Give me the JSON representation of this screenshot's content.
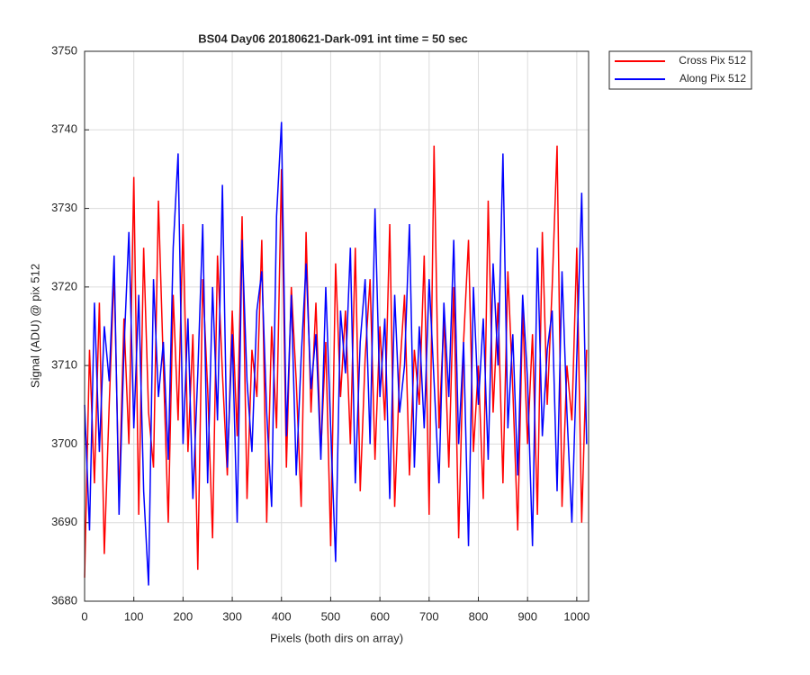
{
  "chart_data": {
    "type": "line",
    "title": "BS04 Day06 20180621-Dark-091 int time = 50 sec",
    "xlabel": "Pixels (both dirs on array)",
    "ylabel": "Signal (ADU) @ pix 512",
    "xlim": [
      0,
      1024
    ],
    "ylim": [
      3680,
      3750
    ],
    "xticks": [
      0,
      100,
      200,
      300,
      400,
      500,
      600,
      700,
      800,
      900,
      1000
    ],
    "yticks": [
      3680,
      3690,
      3700,
      3710,
      3720,
      3730,
      3740,
      3750
    ],
    "grid": true,
    "legend": "outside-top-right",
    "x": [
      0,
      10,
      20,
      30,
      40,
      50,
      60,
      70,
      80,
      90,
      100,
      110,
      120,
      130,
      140,
      150,
      160,
      170,
      180,
      190,
      200,
      210,
      220,
      230,
      240,
      250,
      260,
      270,
      280,
      290,
      300,
      310,
      320,
      330,
      340,
      350,
      360,
      370,
      380,
      390,
      400,
      410,
      420,
      430,
      440,
      450,
      460,
      470,
      480,
      490,
      500,
      510,
      520,
      530,
      540,
      550,
      560,
      570,
      580,
      590,
      600,
      610,
      620,
      630,
      640,
      650,
      660,
      670,
      680,
      690,
      700,
      710,
      720,
      730,
      740,
      750,
      760,
      770,
      780,
      790,
      800,
      810,
      820,
      830,
      840,
      850,
      860,
      870,
      880,
      890,
      900,
      910,
      920,
      930,
      940,
      950,
      960,
      970,
      980,
      990,
      1000,
      1010,
      1020
    ],
    "series": [
      {
        "name": "Cross Pix 512",
        "color": "#ff0000",
        "values": [
          3683,
          3712,
          3695,
          3718,
          3686,
          3705,
          3722,
          3693,
          3716,
          3700,
          3734,
          3691,
          3725,
          3704,
          3697,
          3731,
          3710,
          3690,
          3719,
          3703,
          3728,
          3699,
          3714,
          3684,
          3721,
          3707,
          3688,
          3724,
          3709,
          3696,
          3717,
          3701,
          3729,
          3693,
          3712,
          3706,
          3726,
          3690,
          3715,
          3702,
          3735,
          3697,
          3720,
          3708,
          3692,
          3727,
          3704,
          3718,
          3699,
          3713,
          3687,
          3723,
          3706,
          3717,
          3700,
          3725,
          3694,
          3711,
          3721,
          3698,
          3715,
          3703,
          3728,
          3692,
          3709,
          3719,
          3696,
          3712,
          3705,
          3724,
          3691,
          3738,
          3702,
          3716,
          3697,
          3720,
          3688,
          3713,
          3726,
          3699,
          3710,
          3693,
          3731,
          3704,
          3718,
          3695,
          3722,
          3707,
          3689,
          3717,
          3700,
          3714,
          3691,
          3727,
          3705,
          3720,
          3738,
          3692,
          3710,
          3703,
          3725,
          3690,
          3712
        ]
      },
      {
        "name": "Along Pix 512",
        "color": "#0000ff",
        "values": [
          3705,
          3689,
          3718,
          3699,
          3715,
          3708,
          3724,
          3691,
          3712,
          3727,
          3702,
          3719,
          3694,
          3682,
          3721,
          3706,
          3713,
          3698,
          3725,
          3737,
          3700,
          3716,
          3693,
          3709,
          3728,
          3695,
          3720,
          3703,
          3733,
          3697,
          3714,
          3690,
          3726,
          3708,
          3699,
          3717,
          3722,
          3704,
          3692,
          3729,
          3741,
          3701,
          3719,
          3696,
          3711,
          3723,
          3707,
          3714,
          3698,
          3720,
          3702,
          3685,
          3717,
          3709,
          3725,
          3695,
          3713,
          3721,
          3700,
          3730,
          3706,
          3716,
          3693,
          3719,
          3704,
          3710,
          3728,
          3697,
          3715,
          3702,
          3721,
          3708,
          3695,
          3718,
          3706,
          3726,
          3700,
          3713,
          3687,
          3720,
          3705,
          3716,
          3698,
          3723,
          3710,
          3737,
          3702,
          3714,
          3696,
          3719,
          3708,
          3687,
          3725,
          3701,
          3712,
          3717,
          3694,
          3722,
          3704,
          3690,
          3711,
          3732,
          3700
        ]
      }
    ]
  }
}
